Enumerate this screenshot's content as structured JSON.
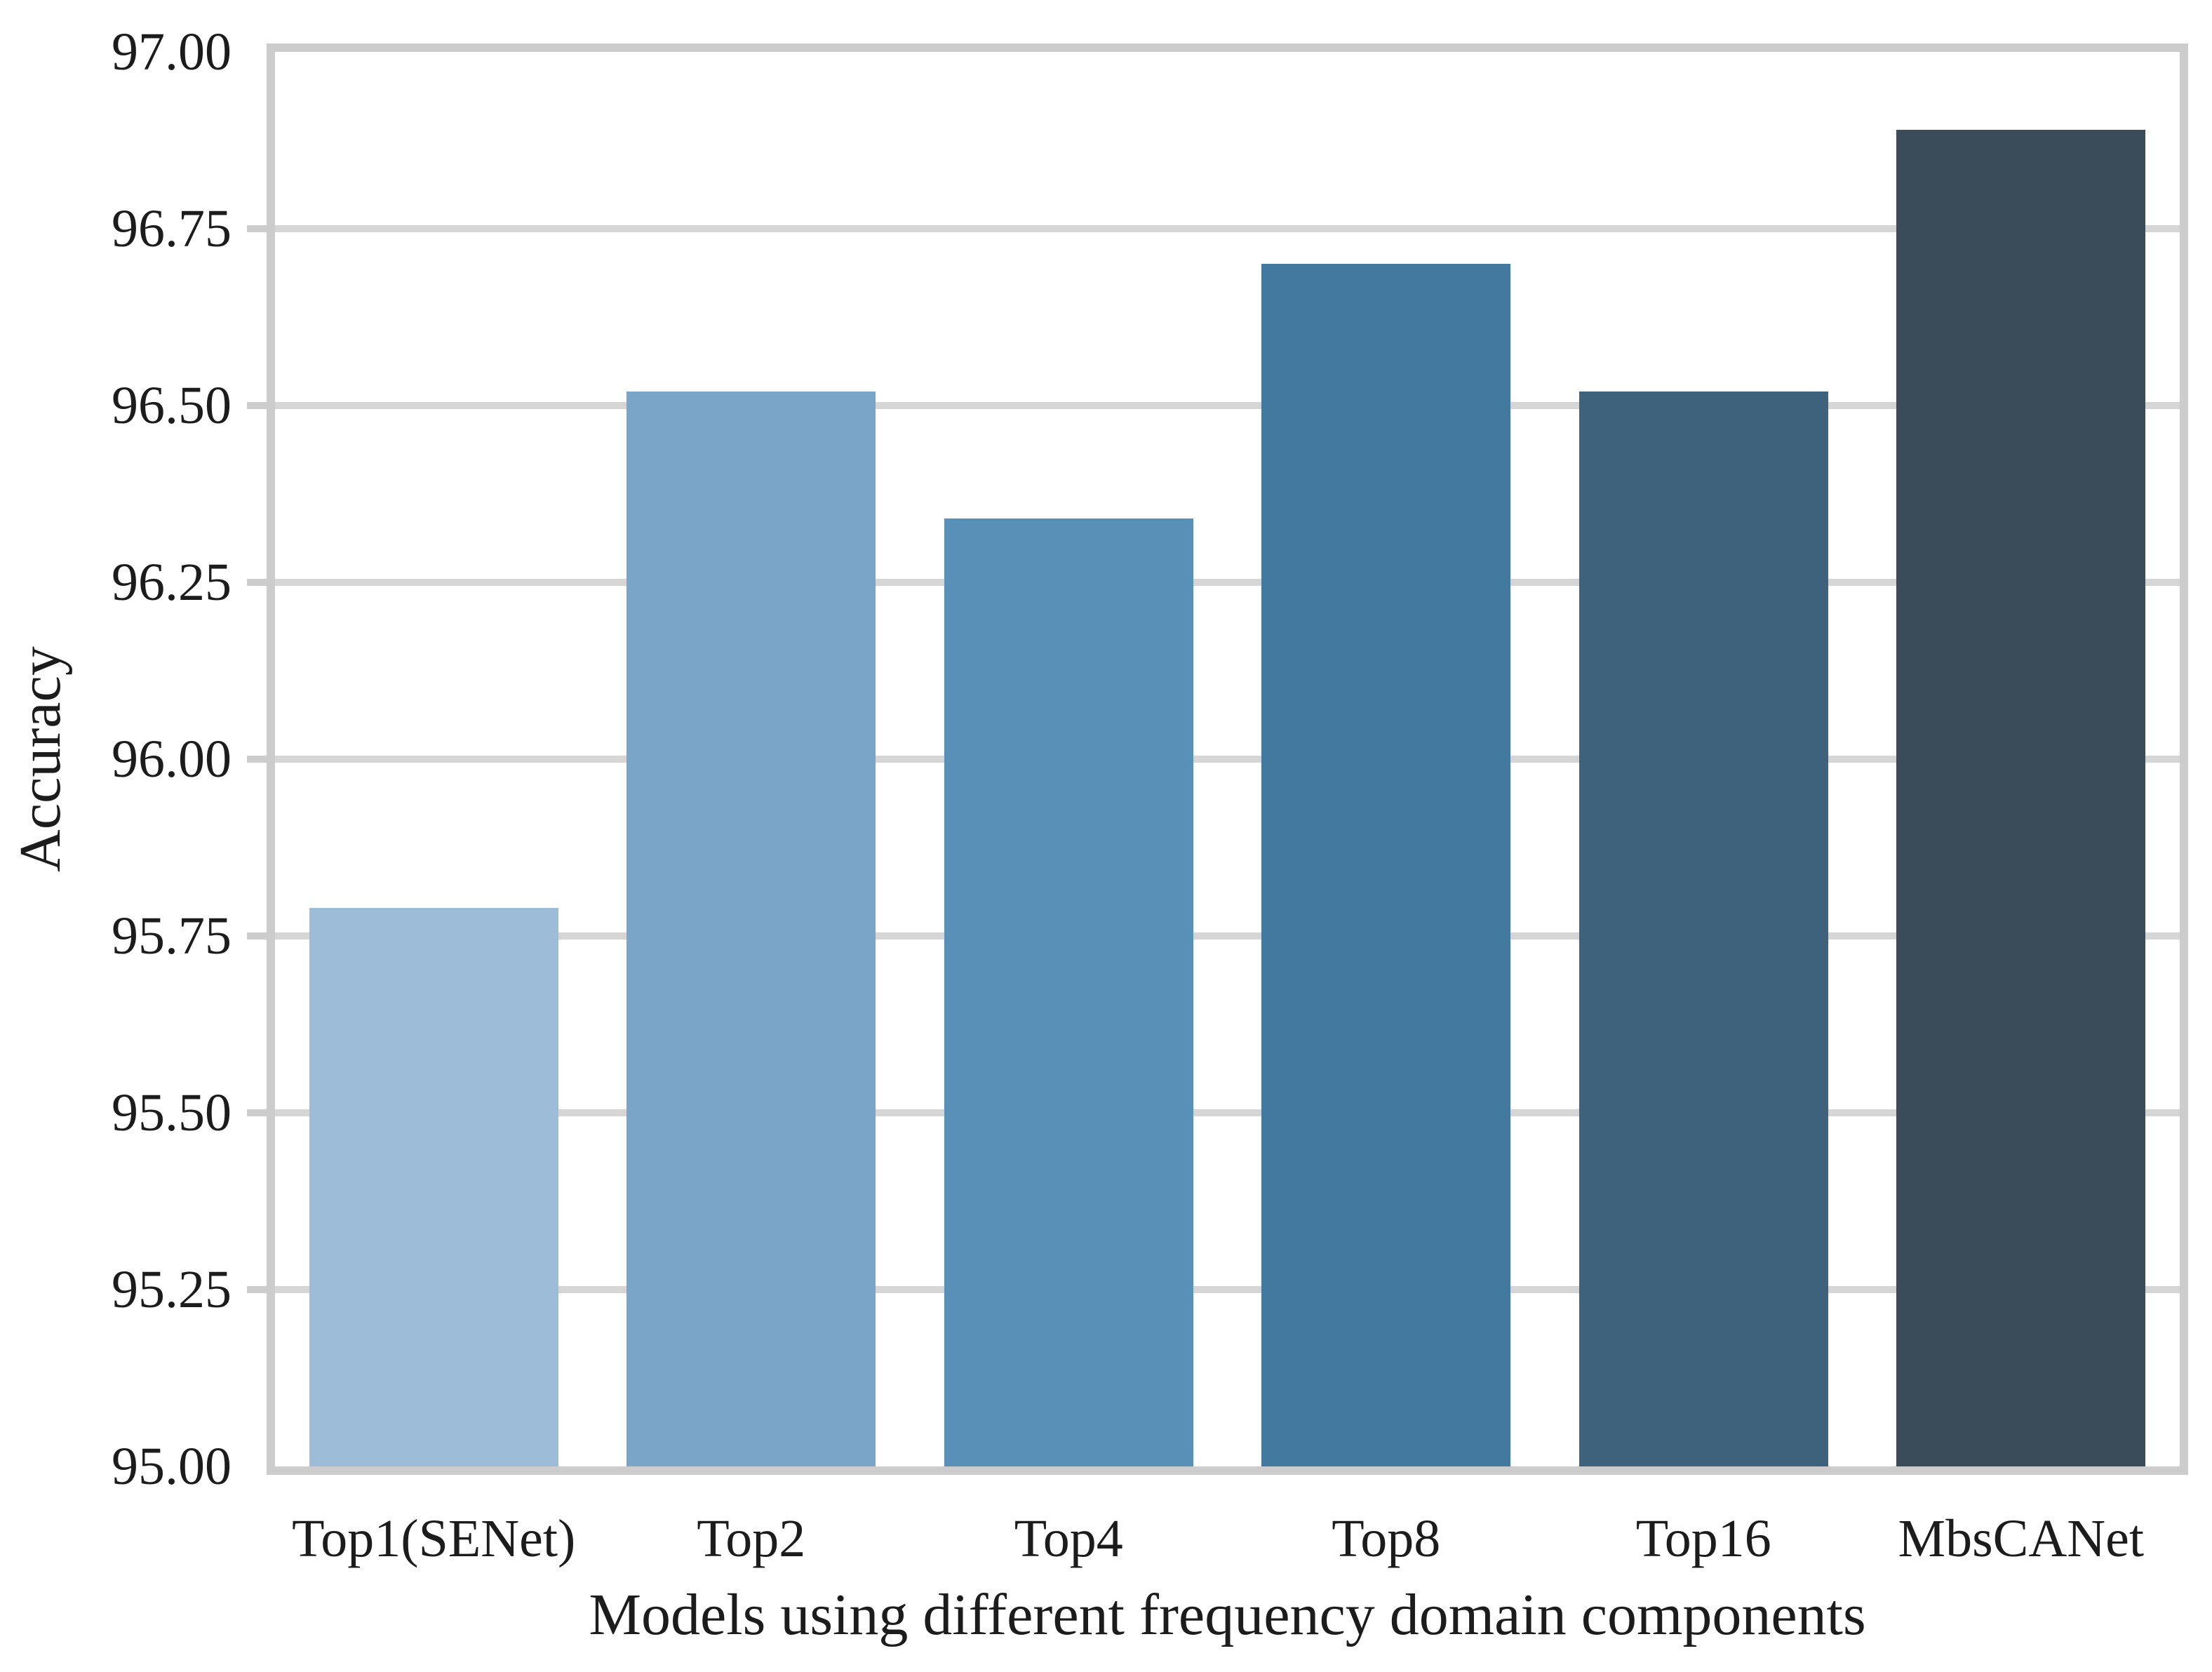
{
  "chart_data": {
    "type": "bar",
    "title": "",
    "xlabel": "Models using different frequency domain components",
    "ylabel": "Accuracy",
    "categories": [
      "Top1(SENet)",
      "Top2",
      "Top4",
      "Top8",
      "Top16",
      "MbsCANet"
    ],
    "values": [
      95.79,
      96.52,
      96.34,
      96.7,
      96.52,
      96.89
    ],
    "bar_colors": [
      "#9dbcd8",
      "#7aa5c8",
      "#5890b8",
      "#44799f",
      "#3e627c",
      "#3a4b59"
    ],
    "ylim": [
      95.0,
      97.0
    ],
    "ytick_step": 0.25,
    "ytick_labels": [
      "97.00",
      "96.75",
      "96.50",
      "96.25",
      "96.00",
      "95.75",
      "95.50",
      "95.25",
      "95.00"
    ],
    "grid": "horizontal",
    "legend": "none",
    "axis_color": "#cccccc",
    "grid_color": "#d5d5d5",
    "text_color": "#1c1c1c",
    "background_color": "#ffffff"
  }
}
